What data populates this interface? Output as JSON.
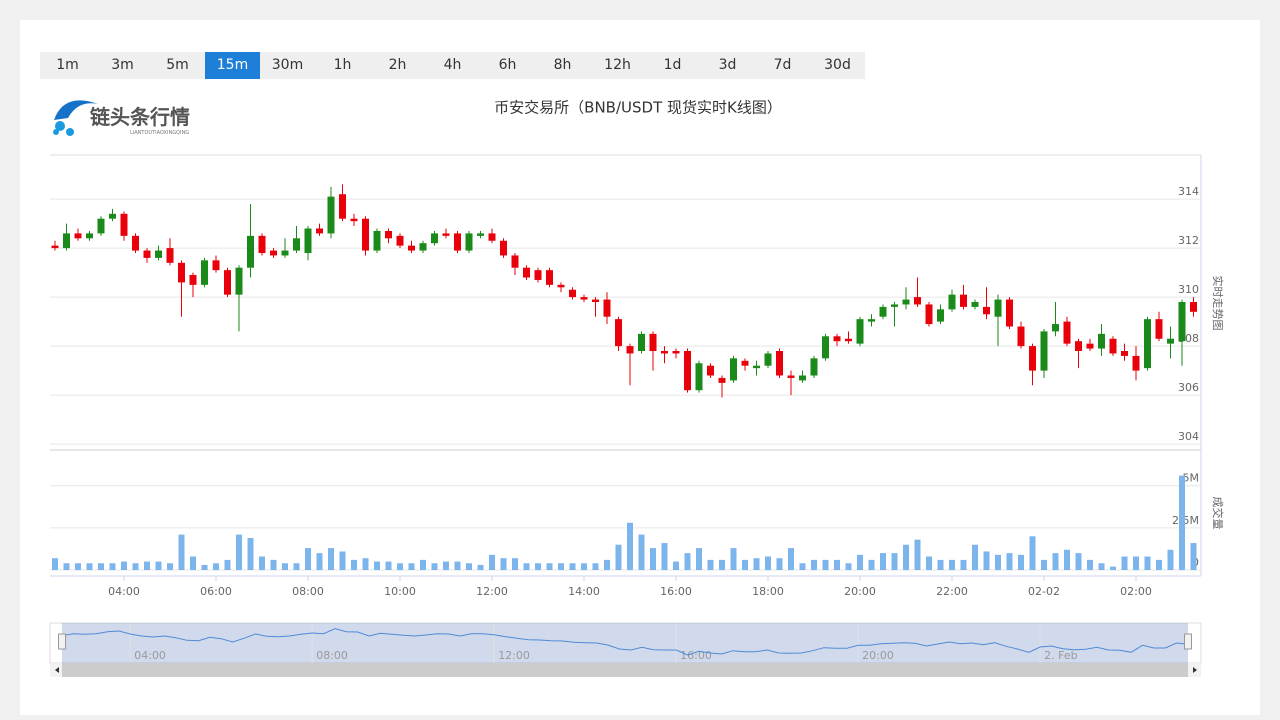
{
  "toolbar": {
    "buttons": [
      "1m",
      "3m",
      "5m",
      "15m",
      "30m",
      "1h",
      "2h",
      "4h",
      "6h",
      "8h",
      "12h",
      "1d",
      "3d",
      "7d",
      "30d"
    ],
    "active": 3
  },
  "logo": {
    "name": "链头条行情",
    "subtitle": "LIANTOUTIAOXINGQING"
  },
  "chart_data": {
    "type": "candlestick",
    "title": "币安交易所（BNB/USDT 现货实时K线图）",
    "categories": [
      null,
      null,
      null,
      null,
      null,
      null,
      "04:00",
      null,
      null,
      null,
      null,
      null,
      null,
      null,
      "06:00",
      null,
      null,
      null,
      null,
      null,
      null,
      null,
      "08:00",
      null,
      null,
      null,
      null,
      null,
      null,
      null,
      "10:00",
      null,
      null,
      null,
      null,
      null,
      null,
      null,
      "12:00",
      null,
      null,
      null,
      null,
      null,
      null,
      null,
      "14:00",
      null,
      null,
      null,
      null,
      null,
      null,
      null,
      "16:00",
      null,
      null,
      null,
      null,
      null,
      null,
      null,
      "18:00",
      null,
      null,
      null,
      null,
      null,
      null,
      null,
      "20:00",
      null,
      null,
      null,
      null,
      null,
      null,
      null,
      "22:00",
      null,
      null,
      null,
      null,
      null,
      null,
      null,
      "02-02",
      null,
      null,
      null,
      null,
      null,
      null,
      null,
      "02:00",
      null,
      null,
      null,
      null,
      null
    ],
    "open": [
      312.1,
      312.0,
      312.6,
      312.4,
      312.6,
      313.2,
      313.4,
      312.5,
      311.9,
      311.6,
      312.0,
      311.4,
      310.9,
      310.5,
      311.5,
      311.1,
      310.1,
      311.2,
      312.5,
      311.9,
      311.7,
      311.9,
      311.8,
      312.8,
      312.6,
      314.2,
      313.2,
      313.2,
      311.9,
      312.7,
      312.5,
      312.1,
      311.9,
      312.2,
      312.6,
      312.6,
      311.9,
      312.5,
      312.6,
      312.3,
      311.7,
      311.2,
      311.1,
      311.1,
      310.5,
      310.3,
      310.0,
      309.9,
      309.9,
      309.1,
      308.0,
      307.8,
      308.5,
      307.8,
      307.8,
      307.8,
      306.2,
      307.2,
      306.7,
      306.6,
      307.4,
      307.1,
      307.2,
      307.8,
      306.8,
      306.6,
      306.8,
      307.5,
      308.4,
      308.3,
      308.1,
      309.0,
      309.2,
      309.6,
      309.7,
      310.0,
      309.7,
      309.0,
      309.5,
      310.1,
      309.6,
      309.6,
      309.2,
      309.9,
      308.8,
      308.0,
      307.0,
      308.6,
      309.0,
      308.2,
      308.1,
      307.9,
      308.3,
      307.8,
      307.6,
      307.1,
      309.1,
      308.1,
      308.2,
      309.8
    ],
    "high": [
      312.3,
      313.0,
      312.8,
      312.7,
      313.3,
      313.6,
      313.5,
      312.6,
      312.0,
      312.1,
      312.4,
      311.5,
      311.0,
      311.6,
      311.7,
      311.2,
      311.3,
      313.8,
      312.6,
      312.0,
      312.4,
      312.9,
      312.9,
      313.0,
      314.5,
      314.6,
      313.4,
      313.3,
      312.8,
      312.8,
      312.6,
      312.3,
      312.3,
      312.7,
      312.8,
      312.7,
      312.7,
      312.7,
      312.8,
      312.4,
      311.8,
      311.3,
      311.2,
      311.2,
      310.6,
      310.4,
      310.1,
      310.0,
      310.2,
      309.2,
      308.1,
      308.6,
      308.6,
      308.0,
      307.9,
      307.9,
      307.4,
      307.3,
      306.8,
      307.6,
      307.5,
      307.4,
      307.8,
      307.9,
      307.0,
      307.0,
      307.6,
      308.5,
      308.5,
      308.6,
      309.2,
      309.3,
      309.7,
      309.8,
      310.4,
      310.8,
      309.8,
      309.7,
      310.3,
      310.5,
      309.9,
      310.4,
      310.1,
      310.0,
      309.0,
      308.1,
      308.7,
      309.8,
      309.2,
      308.3,
      308.3,
      308.9,
      308.4,
      308.1,
      308.0,
      309.2,
      309.4,
      308.8,
      309.9,
      310.0
    ],
    "low": [
      311.9,
      311.9,
      312.3,
      312.3,
      312.5,
      313.1,
      312.3,
      311.8,
      311.4,
      311.5,
      311.3,
      309.2,
      310.0,
      310.4,
      311.0,
      310.0,
      308.6,
      310.8,
      311.7,
      311.6,
      311.6,
      311.8,
      311.5,
      312.5,
      312.4,
      313.1,
      312.9,
      311.7,
      311.8,
      312.2,
      312.0,
      311.8,
      311.8,
      312.1,
      312.4,
      311.8,
      311.8,
      312.4,
      312.2,
      311.6,
      310.9,
      310.7,
      310.6,
      310.4,
      310.2,
      309.9,
      309.8,
      309.2,
      308.9,
      307.8,
      306.4,
      307.7,
      307.0,
      307.3,
      307.5,
      306.1,
      306.1,
      306.7,
      305.9,
      306.5,
      307.0,
      306.8,
      307.1,
      306.7,
      306.0,
      306.5,
      306.7,
      307.4,
      308.0,
      308.1,
      308.0,
      308.8,
      309.1,
      308.8,
      309.5,
      309.6,
      308.8,
      308.9,
      309.4,
      309.5,
      309.5,
      309.1,
      308.0,
      308.7,
      307.9,
      306.4,
      306.7,
      308.4,
      308.0,
      307.1,
      307.8,
      307.6,
      307.6,
      307.4,
      306.6,
      307.0,
      308.2,
      307.5,
      307.2,
      309.2
    ],
    "close": [
      312.0,
      312.6,
      312.4,
      312.6,
      313.2,
      313.4,
      312.5,
      311.9,
      311.6,
      311.9,
      311.4,
      310.6,
      310.5,
      311.5,
      311.1,
      310.1,
      311.2,
      312.5,
      311.8,
      311.7,
      311.9,
      312.4,
      312.8,
      312.6,
      314.1,
      313.2,
      313.1,
      311.9,
      312.7,
      312.4,
      312.1,
      311.9,
      312.2,
      312.6,
      312.5,
      311.9,
      312.6,
      312.6,
      312.3,
      311.7,
      311.2,
      310.8,
      310.7,
      310.5,
      310.4,
      310.0,
      309.9,
      309.8,
      309.2,
      308.0,
      307.7,
      308.5,
      307.8,
      307.7,
      307.7,
      306.2,
      307.3,
      306.8,
      306.5,
      307.5,
      307.2,
      307.2,
      307.7,
      306.8,
      306.7,
      306.8,
      307.5,
      308.4,
      308.2,
      308.2,
      309.1,
      309.1,
      309.6,
      309.7,
      309.9,
      309.7,
      308.9,
      309.5,
      310.1,
      309.6,
      309.8,
      309.3,
      309.9,
      308.8,
      308.0,
      307.0,
      308.6,
      308.9,
      308.1,
      307.8,
      307.9,
      308.5,
      307.7,
      307.6,
      307.0,
      309.1,
      308.3,
      308.3,
      309.8,
      309.4
    ],
    "up_color": "#1a8a1a",
    "down_color": "#e8000b",
    "ylim": [
      303.8,
      315.8
    ],
    "yticks": [
      304,
      306,
      308,
      310,
      312,
      314
    ],
    "y_axis_label": "实时走势图",
    "grid": true,
    "volume": {
      "name": "成交量",
      "color": "#7cb5ec",
      "values": [
        700000,
        400000,
        400000,
        400000,
        400000,
        400000,
        500000,
        400000,
        500000,
        500000,
        400000,
        2100000,
        800000,
        300000,
        400000,
        600000,
        2100000,
        1900000,
        800000,
        600000,
        400000,
        400000,
        1300000,
        1000000,
        1300000,
        1100000,
        600000,
        700000,
        500000,
        500000,
        400000,
        400000,
        600000,
        400000,
        500000,
        500000,
        400000,
        300000,
        900000,
        700000,
        700000,
        400000,
        400000,
        400000,
        400000,
        400000,
        400000,
        400000,
        600000,
        1500000,
        2800000,
        2100000,
        1300000,
        1600000,
        500000,
        1000000,
        1300000,
        600000,
        600000,
        1300000,
        600000,
        700000,
        800000,
        700000,
        1300000,
        400000,
        600000,
        600000,
        600000,
        400000,
        900000,
        600000,
        1000000,
        1000000,
        1500000,
        1800000,
        800000,
        600000,
        600000,
        600000,
        1500000,
        1100000,
        900000,
        1000000,
        900000,
        2000000,
        600000,
        1000000,
        1200000,
        1000000,
        600000,
        400000,
        200000,
        800000,
        800000,
        800000,
        600000,
        1200000,
        5600000,
        1600000
      ],
      "ylim": [
        0,
        7000000
      ],
      "yticks": [
        0,
        {
          "value": 2500000,
          "label": "2.5M"
        },
        {
          "value": 5000000,
          "label": "5M"
        }
      ]
    },
    "navigator": {
      "labels": [
        "04:00",
        "08:00",
        "12:00",
        "16:00",
        "20:00",
        "2. Feb"
      ]
    }
  }
}
